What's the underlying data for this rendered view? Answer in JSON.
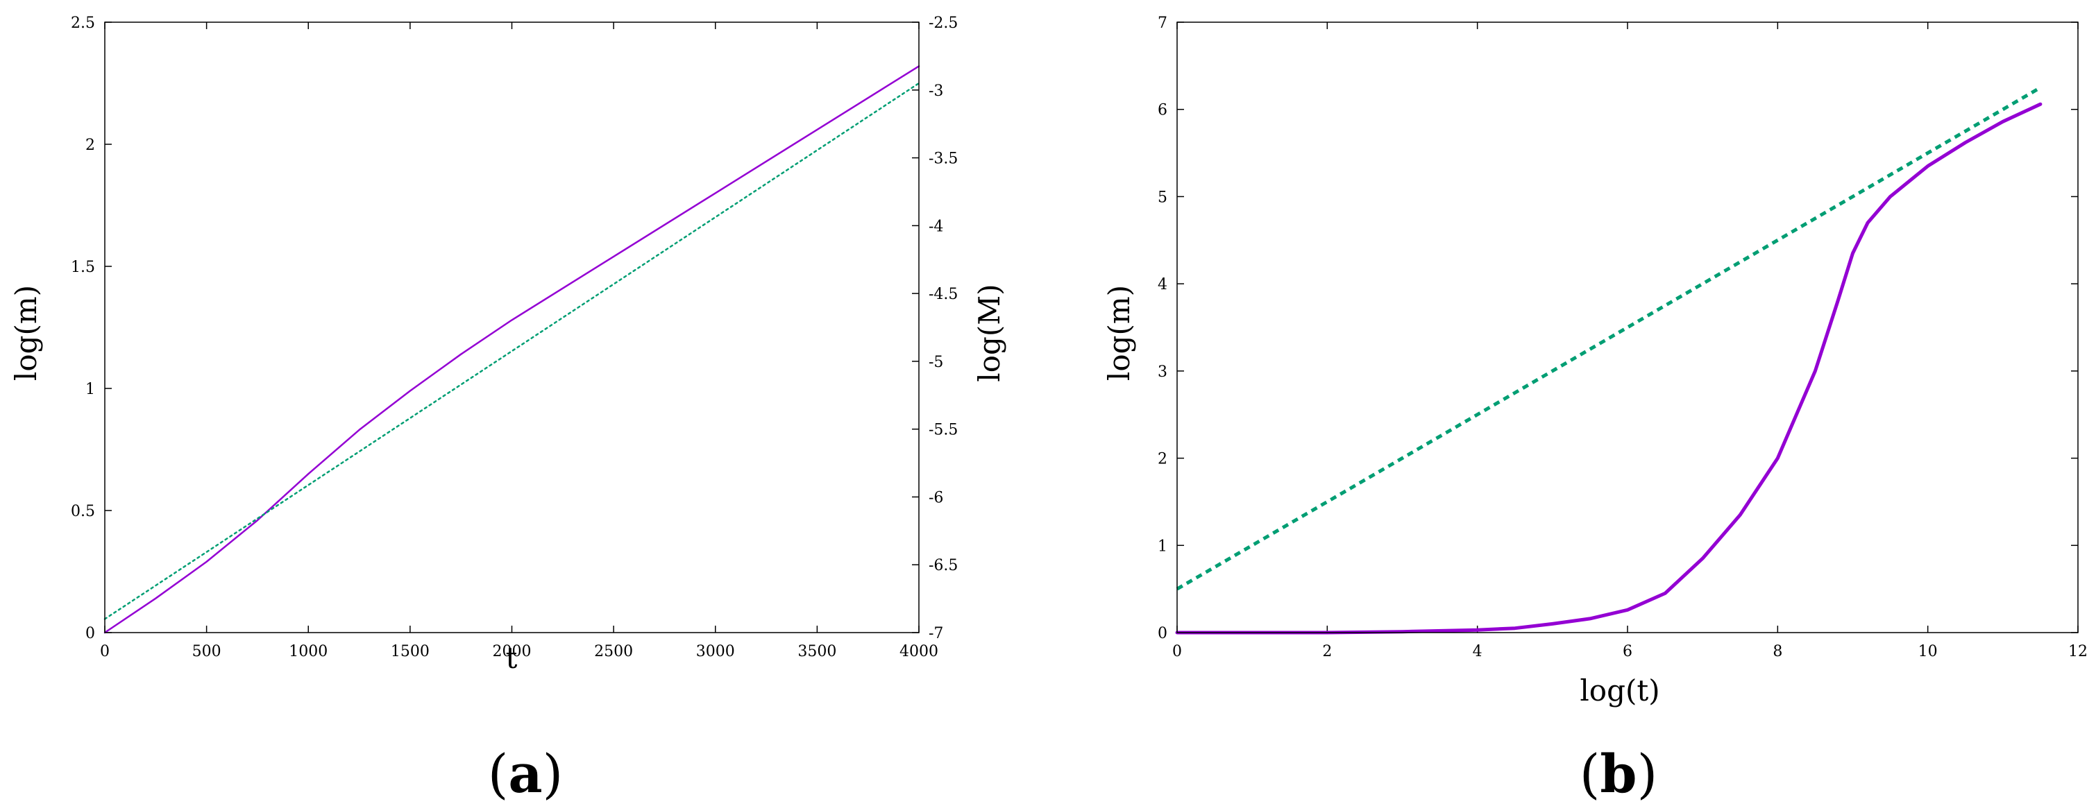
{
  "chart_data": [
    {
      "type": "line",
      "panel_label": "(a)",
      "panel_letter": "a",
      "xlabel": "t",
      "ylabel": "log(m)",
      "y2label": "log(M)",
      "xlim": [
        0,
        4000
      ],
      "ylim": [
        0,
        2.5
      ],
      "y2lim": [
        -7,
        -2.5
      ],
      "xticks": [
        0,
        500,
        1000,
        1500,
        2000,
        2500,
        3000,
        3500,
        4000
      ],
      "yticks": [
        0,
        0.5,
        1,
        1.5,
        2,
        2.5
      ],
      "y2ticks": [
        -7,
        -6.5,
        -6,
        -5.5,
        -5,
        -4.5,
        -4,
        -3.5,
        -3,
        -2.5
      ],
      "grid": false,
      "series": [
        {
          "axis": "left",
          "color": "#9400d3",
          "style": "solid",
          "x": [
            0,
            250,
            500,
            750,
            1000,
            1250,
            1500,
            1750,
            2000,
            2500,
            3000,
            3500,
            4000
          ],
          "y": [
            0,
            0.14,
            0.29,
            0.46,
            0.65,
            0.83,
            0.99,
            1.14,
            1.28,
            1.54,
            1.8,
            2.06,
            2.32
          ]
        },
        {
          "axis": "right",
          "color": "#009e73",
          "style": "dotted",
          "x": [
            0,
            4000
          ],
          "y": [
            -6.9,
            -2.95
          ]
        }
      ]
    },
    {
      "type": "line",
      "panel_label": "(b)",
      "panel_letter": "b",
      "xlabel": "log(t)",
      "ylabel": "log(m)",
      "xlim": [
        0,
        12
      ],
      "ylim": [
        0,
        7
      ],
      "xticks": [
        0,
        2,
        4,
        6,
        8,
        10,
        12
      ],
      "yticks": [
        0,
        1,
        2,
        3,
        4,
        5,
        6,
        7
      ],
      "grid": false,
      "series": [
        {
          "color": "#9400d3",
          "style": "solid",
          "x": [
            0,
            2,
            3,
            4,
            4.5,
            5,
            5.5,
            6,
            6.5,
            7,
            7.5,
            8,
            8.5,
            8.8,
            9,
            9.2,
            9.5,
            10,
            10.5,
            11,
            11.5
          ],
          "y": [
            0,
            0,
            0.01,
            0.03,
            0.05,
            0.1,
            0.16,
            0.26,
            0.45,
            0.85,
            1.35,
            2.0,
            3.0,
            3.8,
            4.35,
            4.7,
            5.0,
            5.35,
            5.62,
            5.86,
            6.06
          ]
        },
        {
          "color": "#009e73",
          "style": "dashed",
          "x": [
            0,
            11.5
          ],
          "y": [
            0.5,
            6.25
          ]
        }
      ]
    }
  ]
}
